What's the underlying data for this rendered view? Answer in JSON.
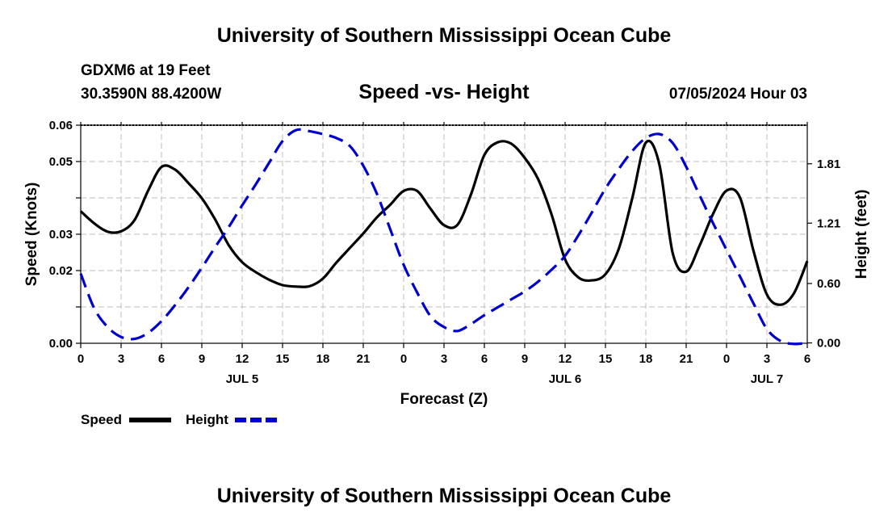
{
  "header": {
    "title": "University of Southern Mississippi Ocean Cube",
    "station": "GDXM6 at 19 Feet",
    "coords": "30.3590N  88.4200W",
    "subtitle": "Speed -vs- Height",
    "datetime": "07/05/2024 Hour 03"
  },
  "footer": {
    "title": "University of Southern Mississippi Ocean Cube"
  },
  "legend": {
    "speed_label": "Speed",
    "height_label": "Height"
  },
  "colors": {
    "speed": "#000000",
    "height": "#0000cc",
    "grid": "#bdbdbd"
  },
  "chart_data": {
    "type": "line",
    "title": "Speed -vs- Height",
    "xlabel": "Forecast (Z)",
    "ylabel_left": "Speed (Knots)",
    "ylabel_right": "Height (feet)",
    "x_range_hours": [
      0,
      54
    ],
    "x_ticks": [
      {
        "h": 0,
        "label": "0"
      },
      {
        "h": 3,
        "label": "3"
      },
      {
        "h": 6,
        "label": "6"
      },
      {
        "h": 9,
        "label": "9"
      },
      {
        "h": 12,
        "label": "12"
      },
      {
        "h": 15,
        "label": "15"
      },
      {
        "h": 18,
        "label": "18"
      },
      {
        "h": 21,
        "label": "21"
      },
      {
        "h": 24,
        "label": "0"
      },
      {
        "h": 27,
        "label": "3"
      },
      {
        "h": 30,
        "label": "6"
      },
      {
        "h": 33,
        "label": "9"
      },
      {
        "h": 36,
        "label": "12"
      },
      {
        "h": 39,
        "label": "15"
      },
      {
        "h": 42,
        "label": "18"
      },
      {
        "h": 45,
        "label": "21"
      },
      {
        "h": 48,
        "label": "0"
      },
      {
        "h": 51,
        "label": "3"
      },
      {
        "h": 54,
        "label": "6"
      }
    ],
    "day_labels": [
      {
        "h": 12,
        "label": "JUL 5"
      },
      {
        "h": 36,
        "label": "JUL 6"
      },
      {
        "h": 51,
        "label": "JUL 7"
      }
    ],
    "y_left": {
      "range": [
        0,
        0.06
      ],
      "ticks": [
        0.0,
        0.01,
        0.02,
        0.03,
        0.04,
        0.05,
        0.06
      ],
      "tick_labels": [
        "0.00",
        "",
        "0.02",
        "0.03",
        "",
        "0.05",
        "0.06"
      ]
    },
    "y_right": {
      "range": [
        -0.0038,
        2.2
      ],
      "ticks": [
        0.0,
        0.6,
        1.21,
        1.81
      ],
      "tick_labels": [
        "0.00",
        "0.60",
        "1.21",
        "1.81"
      ]
    },
    "series": [
      {
        "name": "Speed",
        "axis": "left",
        "style": "solid",
        "x": [
          0,
          1,
          2,
          3,
          4,
          5,
          6,
          7,
          8,
          9,
          10,
          11,
          12,
          13,
          14,
          15,
          16,
          17,
          18,
          19,
          20,
          21,
          22,
          23,
          24,
          25,
          26,
          27,
          28,
          29,
          30,
          31,
          32,
          33,
          34,
          35,
          36,
          37,
          38,
          39,
          40,
          41,
          42,
          43,
          44,
          45,
          46,
          47,
          48,
          49,
          50,
          51,
          52,
          53,
          54
        ],
        "values": [
          0.0363,
          0.033,
          0.0307,
          0.0308,
          0.0339,
          0.0419,
          0.0485,
          0.0478,
          0.0441,
          0.0399,
          0.034,
          0.027,
          0.0223,
          0.0196,
          0.0175,
          0.016,
          0.0156,
          0.0157,
          0.0178,
          0.0222,
          0.0262,
          0.0302,
          0.0346,
          0.0381,
          0.0419,
          0.0419,
          0.037,
          0.0325,
          0.0326,
          0.0409,
          0.0518,
          0.0553,
          0.0549,
          0.051,
          0.0451,
          0.0354,
          0.0231,
          0.0181,
          0.0173,
          0.019,
          0.0261,
          0.04,
          0.0552,
          0.0493,
          0.0248,
          0.0197,
          0.0269,
          0.0356,
          0.042,
          0.0401,
          0.0255,
          0.0134,
          0.0106,
          0.0137,
          0.0226
        ]
      },
      {
        "name": "Height",
        "axis": "right",
        "style": "dashed",
        "x": [
          0,
          1,
          2,
          3,
          4,
          5,
          6,
          7,
          8,
          9,
          10,
          11,
          12,
          13,
          14,
          15,
          16,
          17,
          18,
          19,
          20,
          21,
          22,
          23,
          24,
          25,
          26,
          27,
          28,
          29,
          30,
          31,
          32,
          33,
          34,
          35,
          36,
          37,
          38,
          39,
          40,
          41,
          42,
          43,
          44,
          45,
          46,
          47,
          48,
          49,
          50,
          51,
          52,
          53,
          54
        ],
        "values": [
          0.7,
          0.35,
          0.16,
          0.06,
          0.04,
          0.1,
          0.22,
          0.38,
          0.56,
          0.76,
          0.97,
          1.17,
          1.39,
          1.6,
          1.82,
          2.04,
          2.15,
          2.14,
          2.11,
          2.07,
          1.99,
          1.79,
          1.51,
          1.15,
          0.79,
          0.51,
          0.27,
          0.16,
          0.12,
          0.19,
          0.28,
          0.36,
          0.44,
          0.52,
          0.62,
          0.74,
          0.88,
          1.09,
          1.32,
          1.56,
          1.76,
          1.94,
          2.07,
          2.11,
          2.02,
          1.78,
          1.49,
          1.21,
          0.94,
          0.67,
          0.4,
          0.14,
          0.02,
          -0.01,
          0.0
        ]
      }
    ],
    "legend": [
      "Speed",
      "Height"
    ],
    "grid": true
  }
}
